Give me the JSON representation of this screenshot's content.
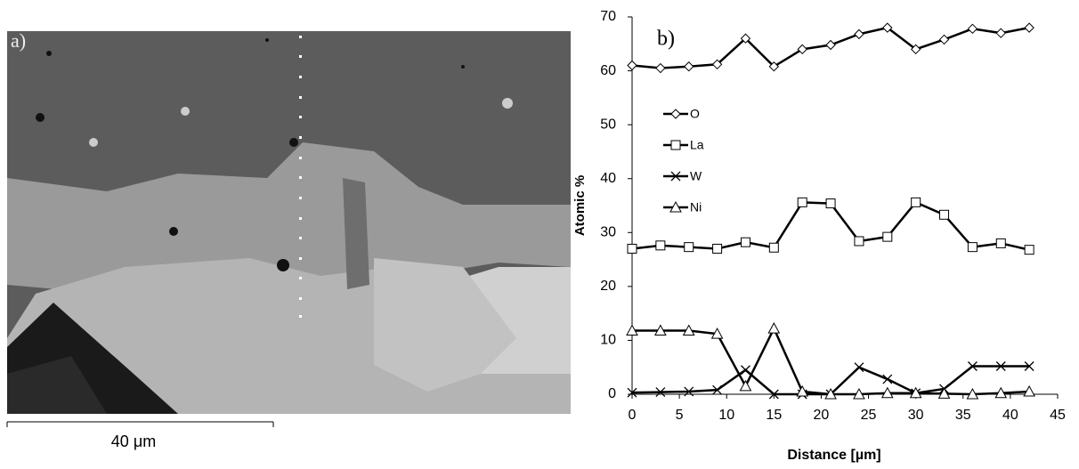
{
  "panel_a": {
    "label": "a)",
    "scale_bar": "40 μm"
  },
  "chart_data": {
    "type": "line",
    "panel_label": "b)",
    "xlabel": "Distance [µm]",
    "ylabel": "Atomic %",
    "x": [
      0,
      3,
      6,
      9,
      12,
      15,
      18,
      21,
      24,
      27,
      30,
      33,
      36,
      39,
      42
    ],
    "series": [
      {
        "name": "O",
        "color": "#000000",
        "marker": "diamond",
        "values": [
          61,
          60.5,
          60.8,
          61.2,
          66,
          60.8,
          64,
          64.8,
          66.8,
          68,
          64,
          65.8,
          67.8,
          67,
          68
        ]
      },
      {
        "name": "La",
        "color": "#000000",
        "marker": "square",
        "values": [
          27,
          27.6,
          27.3,
          27,
          28.2,
          27.2,
          35.6,
          35.4,
          28.4,
          29.2,
          35.6,
          33.3,
          27.3,
          28,
          26.8
        ]
      },
      {
        "name": "W",
        "color": "#000000",
        "marker": "x",
        "values": [
          0.3,
          0.4,
          0.5,
          0.8,
          4.5,
          0,
          0,
          0,
          5,
          2.8,
          0.2,
          1,
          5.2,
          5.2,
          5.2
        ]
      },
      {
        "name": "Ni",
        "color": "#000000",
        "marker": "triangle",
        "values": [
          11.8,
          11.8,
          11.8,
          11.2,
          1.5,
          12.2,
          0.5,
          0,
          0,
          0.2,
          0.2,
          0.1,
          0,
          0.2,
          0.5
        ]
      }
    ],
    "xlim": [
      0,
      45
    ],
    "xticks": [
      0,
      5,
      10,
      15,
      20,
      25,
      30,
      35,
      40,
      45
    ],
    "ylim": [
      0,
      70
    ],
    "yticks": [
      0,
      10,
      20,
      30,
      40,
      50,
      60,
      70
    ],
    "grid": false,
    "legend": "left"
  }
}
